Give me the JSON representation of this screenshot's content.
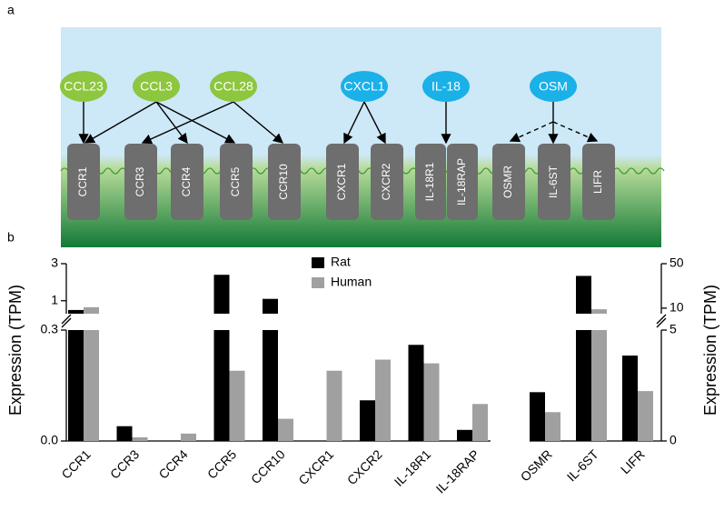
{
  "panel_a": {
    "label": "a",
    "ligands": [
      {
        "label": "CCL23",
        "color": "#8dc63f"
      },
      {
        "label": "CCL3",
        "color": "#8dc63f"
      },
      {
        "label": "CCL28",
        "color": "#8dc63f"
      },
      {
        "label": "CXCL1",
        "color": "#1ab0e8"
      },
      {
        "label": "IL-18",
        "color": "#1ab0e8"
      },
      {
        "label": "OSM",
        "color": "#1ab0e8"
      }
    ],
    "receptors": [
      "CCR1",
      "CCR3",
      "CCR4",
      "CCR5",
      "CCR10",
      "CXCR1",
      "CXCR2",
      "IL-18R1",
      "IL-18RAP",
      "OSMR",
      "IL-6ST",
      "LIFR"
    ]
  },
  "panel_b": {
    "label": "b"
  },
  "chart_data": [
    {
      "type": "bar",
      "ylabel": "Expression (TPM)",
      "axis_side": "left",
      "categories": [
        "CCR1",
        "CCR3",
        "CCR4",
        "CCR5",
        "CCR10",
        "CXCR1",
        "CXCR2",
        "IL-18R1",
        "IL-18RAP"
      ],
      "series": [
        {
          "name": "Rat",
          "color": "#000000",
          "values": [
            0.5,
            0.04,
            0,
            2.4,
            1.1,
            0,
            0.11,
            0.26,
            0.03
          ]
        },
        {
          "name": "Human",
          "color": "#a0a0a0",
          "values": [
            0.65,
            0.01,
            0.02,
            0.19,
            0.06,
            0.19,
            0.22,
            0.21,
            0.1
          ]
        }
      ],
      "y_segments": [
        {
          "ylim": [
            0,
            0.3
          ],
          "yticks": [
            {
              "value": 0,
              "label": "0.0"
            },
            0.3
          ]
        },
        {
          "ylim": [
            0.3,
            3
          ],
          "yticks": [
            1,
            3
          ]
        }
      ]
    },
    {
      "type": "bar",
      "ylabel": "Expression (TPM)",
      "axis_side": "right",
      "categories": [
        "OSMR",
        "IL-6ST",
        "LIFR"
      ],
      "series": [
        {
          "color": "#000000",
          "values": [
            2.2,
            39,
            3.85
          ]
        },
        {
          "color": "#a0a0a0",
          "values": [
            1.3,
            9,
            2.25
          ]
        }
      ],
      "y_segments": [
        {
          "ylim": [
            0,
            5
          ],
          "yticks": [
            0,
            5
          ]
        },
        {
          "ylim": [
            5,
            50
          ],
          "yticks": [
            10,
            50
          ]
        }
      ]
    }
  ]
}
